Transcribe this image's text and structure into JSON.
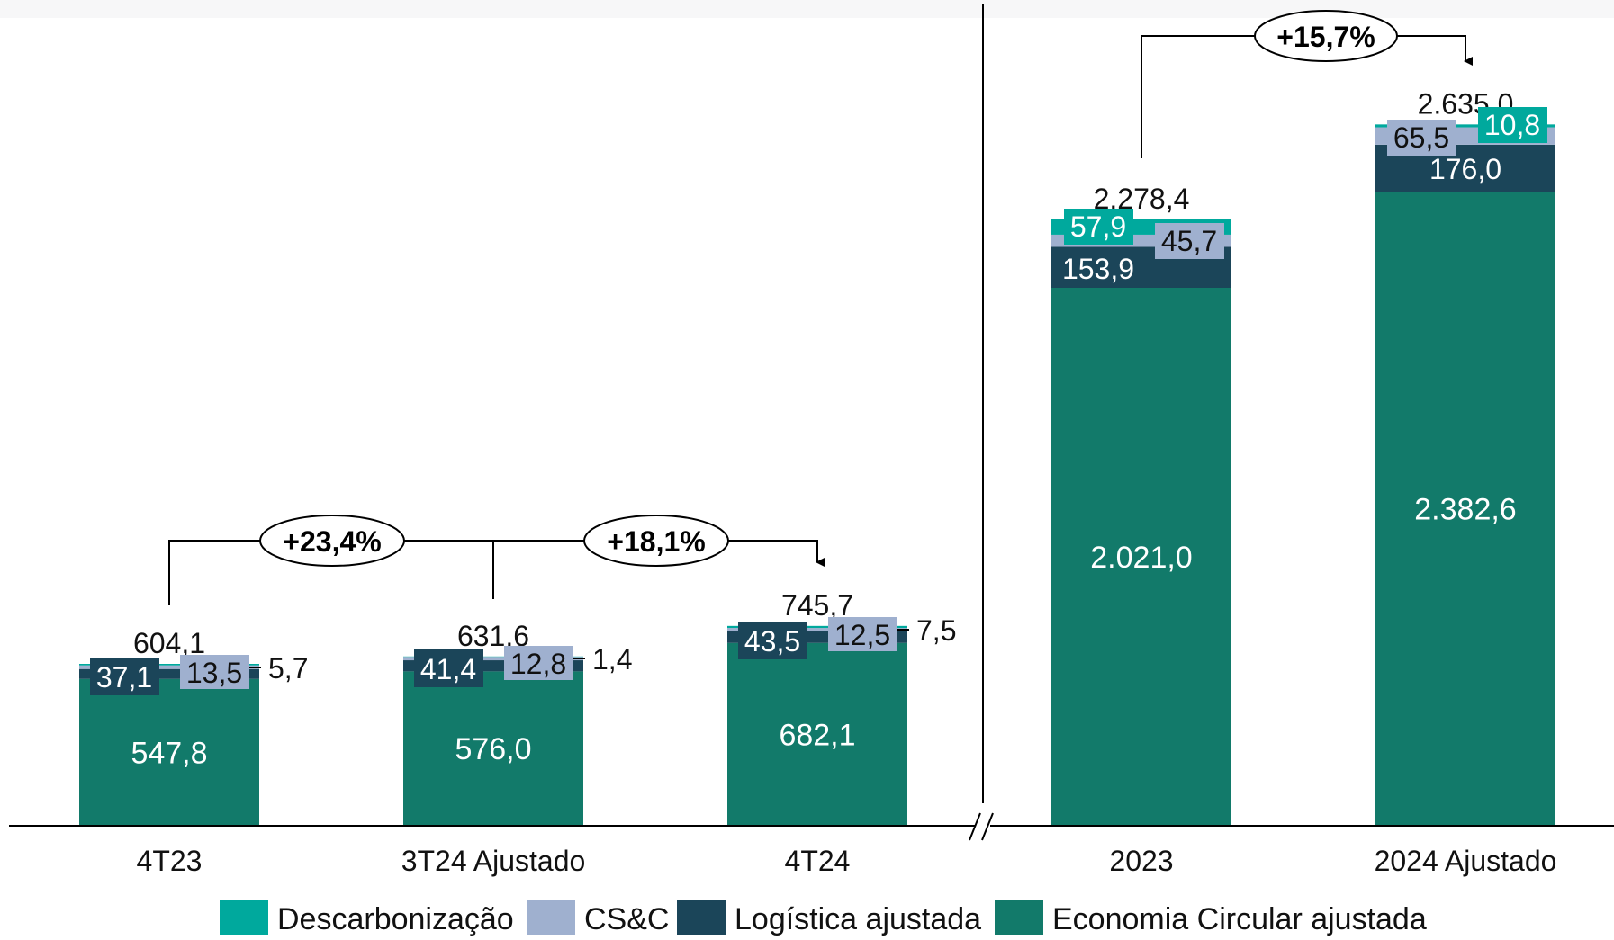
{
  "colors": {
    "descarbonizacao": "#00A99D",
    "csc": "#9FB0CF",
    "logistica": "#1B4559",
    "economia": "#127A6A",
    "axis": "#000000"
  },
  "legend": [
    {
      "key": "descarbonizacao",
      "label": "Descarbonização"
    },
    {
      "key": "csc",
      "label": "CS&C"
    },
    {
      "key": "logistica",
      "label": "Logística ajustada"
    },
    {
      "key": "economia",
      "label": "Economia Circular ajustada"
    }
  ],
  "chart_data": {
    "type": "bar",
    "stacked": true,
    "categories": [
      "4T23",
      "3T24 Ajustado",
      "4T24",
      "2023",
      "2024 Ajustado"
    ],
    "panels": [
      {
        "name": "quarterly",
        "categories": [
          "4T23",
          "3T24 Ajustado",
          "4T24"
        ]
      },
      {
        "name": "annual",
        "categories": [
          "2023",
          "2024 Ajustado"
        ]
      }
    ],
    "series": [
      {
        "name": "Economia Circular ajustada",
        "key": "economia",
        "values": [
          547.8,
          576.0,
          682.1,
          2021.0,
          2382.6
        ],
        "labels": [
          "547,8",
          "576,0",
          "682,1",
          "2.021,0",
          "2.382,6"
        ]
      },
      {
        "name": "Logística ajustada",
        "key": "logistica",
        "values": [
          37.1,
          41.4,
          43.5,
          153.9,
          176.0
        ],
        "labels": [
          "37,1",
          "41,4",
          "43,5",
          "153,9",
          "176,0"
        ]
      },
      {
        "name": "CS&C",
        "key": "csc",
        "values": [
          13.5,
          12.8,
          12.5,
          45.7,
          65.5
        ],
        "labels": [
          "13,5",
          "12,8",
          "12,5",
          "45,7",
          "65,5"
        ]
      },
      {
        "name": "Descarbonização",
        "key": "descarbonizacao",
        "values": [
          5.7,
          1.4,
          7.5,
          57.9,
          10.8
        ],
        "labels": [
          "5,7",
          "1,4",
          "7,5",
          "57,9",
          "10,8"
        ]
      }
    ],
    "totals": [
      604.1,
      631.6,
      745.7,
      2278.4,
      2635.0
    ],
    "total_labels": [
      "604,1",
      "631,6",
      "745,7",
      "2.278,4",
      "2.635,0"
    ],
    "growth": [
      {
        "from": "4T23",
        "to": "4T24",
        "label": "+23,4%"
      },
      {
        "from": "3T24 Ajustado",
        "to": "4T24",
        "label": "+18,1%"
      },
      {
        "from": "2023",
        "to": "2024 Ajustado",
        "label": "+15,7%"
      }
    ],
    "axis_break": true,
    "grid": false,
    "legend_position": "bottom"
  }
}
